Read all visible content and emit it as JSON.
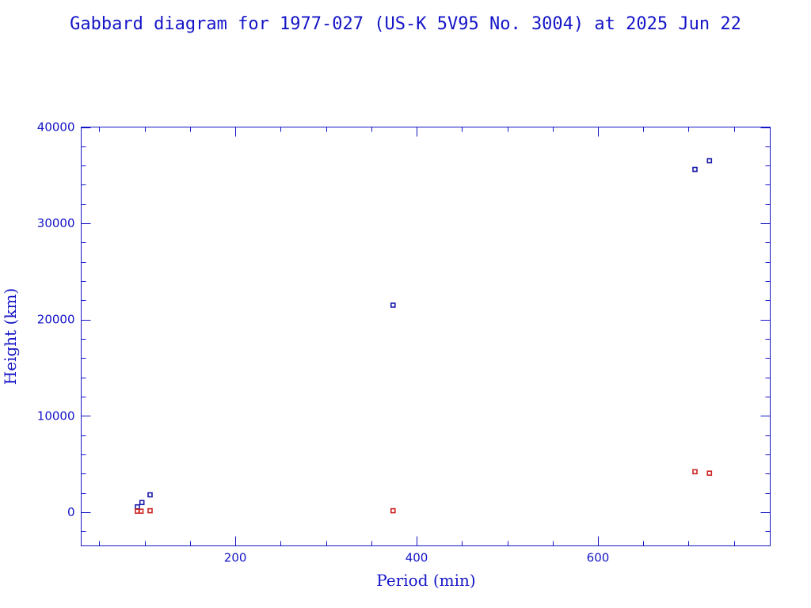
{
  "chart_data": {
    "type": "scatter",
    "title": "Gabbard diagram for 1977-027 (US-K 5V95 No. 3004) at 2025 Jun 22",
    "xlabel": "Period (min)",
    "ylabel": "Height (km)",
    "xlim": [
      30,
      790
    ],
    "ylim": [
      -3500,
      40000
    ],
    "xticks": [
      200,
      400,
      600
    ],
    "xtick_labels": [
      "200",
      "400",
      "600"
    ],
    "yticks": [
      0,
      10000,
      20000,
      30000,
      40000
    ],
    "ytick_labels": [
      "0",
      "10000",
      "20000",
      "30000",
      "40000"
    ],
    "xminor_step": 50,
    "yminor_step": 2000,
    "grid": false,
    "legend": "none",
    "series": [
      {
        "color": "#1a1aaa",
        "x": [
          92,
          97,
          106,
          374,
          707,
          723
        ],
        "y": [
          550,
          1000,
          1800,
          21500,
          35600,
          36500
        ]
      },
      {
        "color": "#cc2222",
        "x": [
          92,
          96,
          106,
          374,
          707,
          723
        ],
        "y": [
          100,
          100,
          150,
          150,
          4200,
          4050
        ]
      }
    ]
  },
  "colors": {
    "text": "#1515c8",
    "apogee_points": "#1a1aaa",
    "perigee_points": "#cc2222"
  }
}
